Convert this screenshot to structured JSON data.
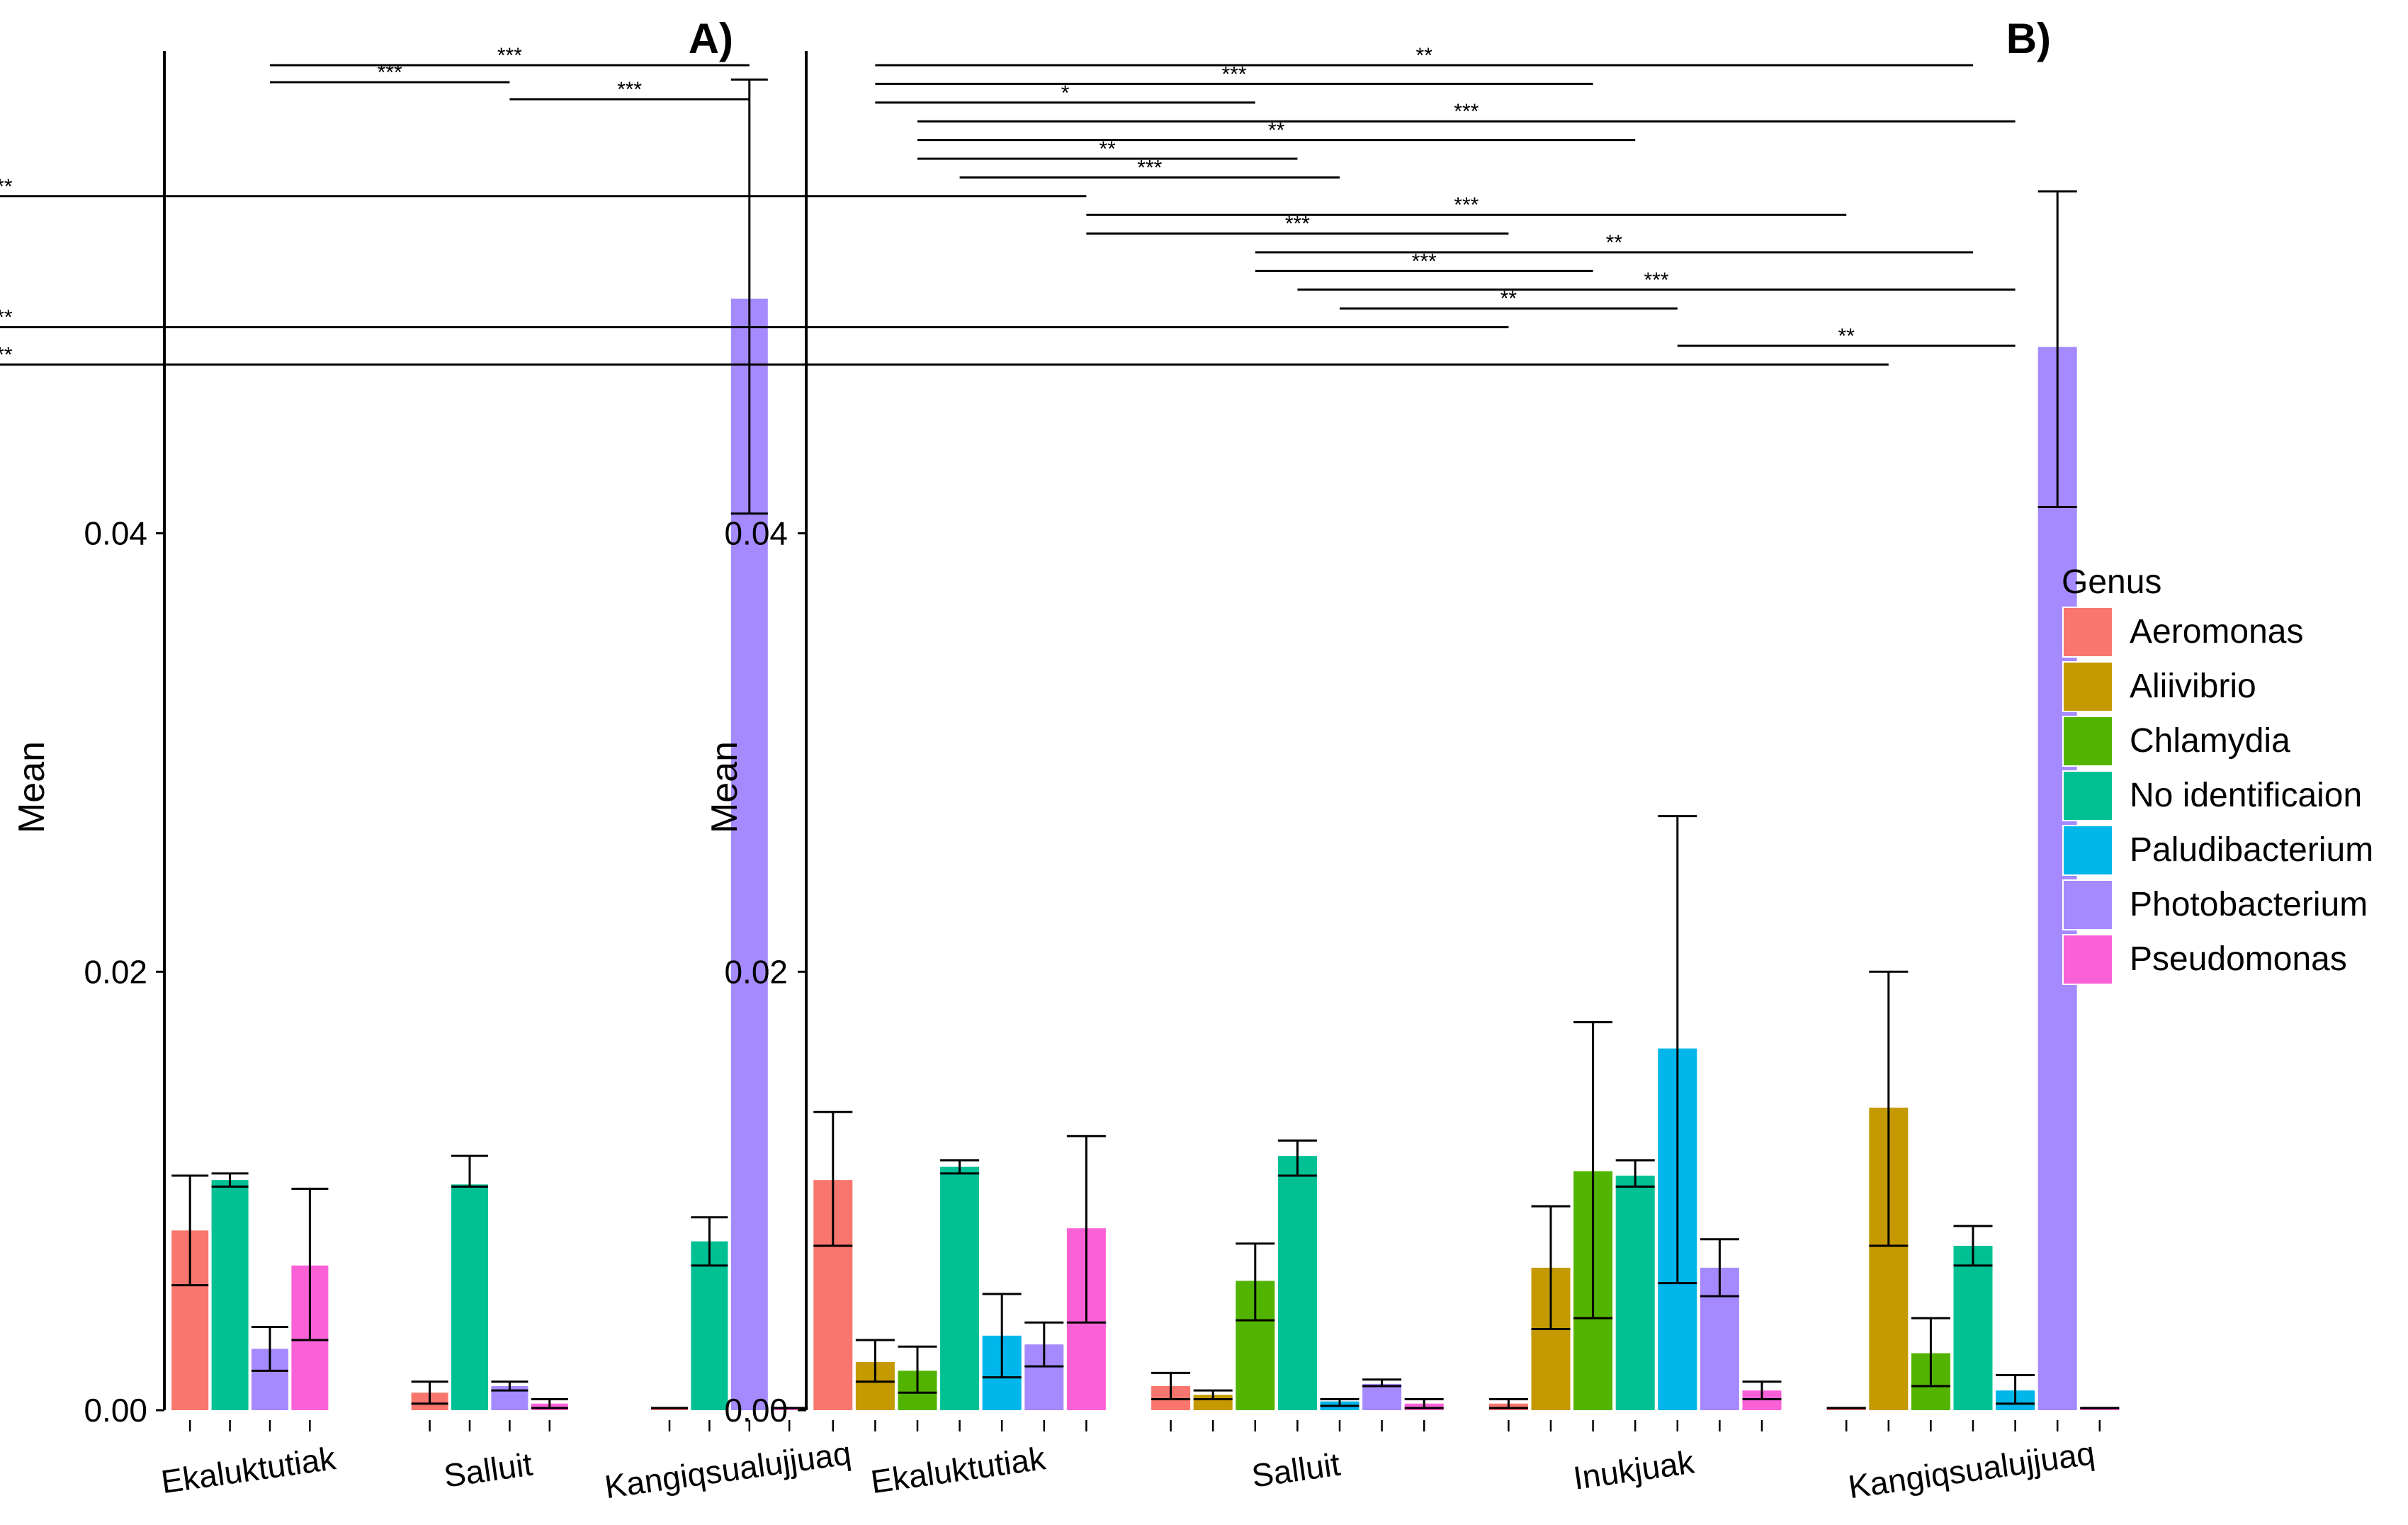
{
  "chart_data": [
    {
      "type": "bar",
      "panel_label": "A)",
      "ylabel": "Mean",
      "ylim": [
        0,
        0.062
      ],
      "yticks": [
        {
          "value": 0,
          "label": "0.00"
        },
        {
          "value": 0.02,
          "label": "0.02"
        },
        {
          "value": 0.04,
          "label": "0.04"
        }
      ],
      "groups": [
        {
          "name": "Ekaluktutiak",
          "bars": [
            {
              "genus": "Aeromonas",
              "mean": 0.0082,
              "err_low": 0.0057,
              "err_high": 0.0107
            },
            {
              "genus": "No identificaion",
              "mean": 0.0105,
              "err_low": 0.0102,
              "err_high": 0.0108
            },
            {
              "genus": "Photobacterium",
              "mean": 0.0028,
              "err_low": 0.0018,
              "err_high": 0.0038
            },
            {
              "genus": "Pseudomonas",
              "mean": 0.0066,
              "err_low": 0.0032,
              "err_high": 0.0101
            }
          ]
        },
        {
          "name": "Salluit",
          "bars": [
            {
              "genus": "Aeromonas",
              "mean": 0.0008,
              "err_low": 0.0003,
              "err_high": 0.0013
            },
            {
              "genus": "No identificaion",
              "mean": 0.0103,
              "err_low": 0.0102,
              "err_high": 0.0116
            },
            {
              "genus": "Photobacterium",
              "mean": 0.0011,
              "err_low": 0.0009,
              "err_high": 0.0013
            },
            {
              "genus": "Pseudomonas",
              "mean": 0.0003,
              "err_low": 0.0001,
              "err_high": 0.0005
            }
          ]
        },
        {
          "name": "Kangiqsualujjuaq",
          "bars": [
            {
              "genus": "Aeromonas",
              "mean": 0.0001,
              "err_low": 0.0001,
              "err_high": 0.0001
            },
            {
              "genus": "No identificaion",
              "mean": 0.0077,
              "err_low": 0.0066,
              "err_high": 0.0088
            },
            {
              "genus": "Photobacterium",
              "mean": 0.0507,
              "err_low": 0.0409,
              "err_high": 0.0607
            },
            {
              "genus": "Pseudomonas",
              "mean": 0.0001,
              "err_low": 0.0001,
              "err_high": 0.0001
            }
          ]
        }
      ],
      "significance": [
        {
          "label": "***",
          "from": 2,
          "to": 10
        },
        {
          "label": "***",
          "from": 2,
          "to": 6
        },
        {
          "label": "***",
          "from": 6,
          "to": 10
        }
      ]
    },
    {
      "type": "bar",
      "panel_label": "B)",
      "ylabel": "Mean",
      "ylim": [
        0,
        0.062
      ],
      "yticks": [
        {
          "value": 0,
          "label": "0.00"
        },
        {
          "value": 0.02,
          "label": "0.02"
        },
        {
          "value": 0.04,
          "label": "0.04"
        }
      ],
      "groups": [
        {
          "name": "Ekaluktutiak",
          "bars": [
            {
              "genus": "Aeromonas",
              "mean": 0.0105,
              "err_low": 0.0075,
              "err_high": 0.0136
            },
            {
              "genus": "Aliivibrio",
              "mean": 0.0022,
              "err_low": 0.0013,
              "err_high": 0.0032
            },
            {
              "genus": "Chlamydia",
              "mean": 0.0018,
              "err_low": 0.0008,
              "err_high": 0.0029
            },
            {
              "genus": "No identificaion",
              "mean": 0.0111,
              "err_low": 0.0108,
              "err_high": 0.0114
            },
            {
              "genus": "Paludibacterium",
              "mean": 0.0034,
              "err_low": 0.0015,
              "err_high": 0.0053
            },
            {
              "genus": "Photobacterium",
              "mean": 0.003,
              "err_low": 0.002,
              "err_high": 0.004
            },
            {
              "genus": "Pseudomonas",
              "mean": 0.0083,
              "err_low": 0.004,
              "err_high": 0.0125
            }
          ]
        },
        {
          "name": "Salluit",
          "bars": [
            {
              "genus": "Aeromonas",
              "mean": 0.0011,
              "err_low": 0.0005,
              "err_high": 0.0017
            },
            {
              "genus": "Aliivibrio",
              "mean": 0.0007,
              "err_low": 0.0005,
              "err_high": 0.0009
            },
            {
              "genus": "Chlamydia",
              "mean": 0.0059,
              "err_low": 0.0041,
              "err_high": 0.0076
            },
            {
              "genus": "No identificaion",
              "mean": 0.0116,
              "err_low": 0.0107,
              "err_high": 0.0123
            },
            {
              "genus": "Paludibacterium",
              "mean": 0.0004,
              "err_low": 0.0002,
              "err_high": 0.0005
            },
            {
              "genus": "Photobacterium",
              "mean": 0.0012,
              "err_low": 0.0011,
              "err_high": 0.0014
            },
            {
              "genus": "Pseudomonas",
              "mean": 0.0003,
              "err_low": 0.0001,
              "err_high": 0.0005
            }
          ]
        },
        {
          "name": "Inukjuak",
          "bars": [
            {
              "genus": "Aeromonas",
              "mean": 0.0003,
              "err_low": 0.0001,
              "err_high": 0.0005
            },
            {
              "genus": "Aliivibrio",
              "mean": 0.0065,
              "err_low": 0.0037,
              "err_high": 0.0093
            },
            {
              "genus": "Chlamydia",
              "mean": 0.0109,
              "err_low": 0.0042,
              "err_high": 0.0177
            },
            {
              "genus": "No identificaion",
              "mean": 0.0107,
              "err_low": 0.0102,
              "err_high": 0.0114
            },
            {
              "genus": "Paludibacterium",
              "mean": 0.0165,
              "err_low": 0.0058,
              "err_high": 0.0271
            },
            {
              "genus": "Photobacterium",
              "mean": 0.0065,
              "err_low": 0.0052,
              "err_high": 0.0078
            },
            {
              "genus": "Pseudomonas",
              "mean": 0.0009,
              "err_low": 0.0005,
              "err_high": 0.0013
            }
          ]
        },
        {
          "name": "Kangiqsualujjuaq",
          "bars": [
            {
              "genus": "Aeromonas",
              "mean": 0.0001,
              "err_low": 0.0001,
              "err_high": 0.0001
            },
            {
              "genus": "Aliivibrio",
              "mean": 0.0138,
              "err_low": 0.0075,
              "err_high": 0.02
            },
            {
              "genus": "Chlamydia",
              "mean": 0.0026,
              "err_low": 0.0011,
              "err_high": 0.0042
            },
            {
              "genus": "No identificaion",
              "mean": 0.0075,
              "err_low": 0.0066,
              "err_high": 0.0084
            },
            {
              "genus": "Paludibacterium",
              "mean": 0.0009,
              "err_low": 0.0003,
              "err_high": 0.0016
            },
            {
              "genus": "Photobacterium",
              "mean": 0.0485,
              "err_low": 0.0412,
              "err_high": 0.0556
            },
            {
              "genus": "Pseudomonas",
              "mean": 0.0001,
              "err_low": 0.0001,
              "err_high": 0.0001
            }
          ]
        }
      ],
      "significance": [
        {
          "label": "**",
          "from": 1,
          "to": 24
        },
        {
          "label": "***",
          "from": 1,
          "to": 16
        },
        {
          "label": "*",
          "from": 1,
          "to": 9
        },
        {
          "label": "***",
          "from": 2,
          "to": 25
        },
        {
          "label": "**",
          "from": 2,
          "to": 17
        },
        {
          "label": "**",
          "from": 2,
          "to": 10
        },
        {
          "label": "***",
          "from": 3,
          "to": 11
        },
        {
          "label": "***",
          "from": 6,
          "to": 29
        },
        {
          "label": "***",
          "from": 6,
          "to": 21
        },
        {
          "label": "***",
          "from": 6,
          "to": 14
        },
        {
          "label": "**",
          "from": 9,
          "to": 24
        },
        {
          "label": "***",
          "from": 9,
          "to": 16
        },
        {
          "label": "***",
          "from": 10,
          "to": 25
        },
        {
          "label": "**",
          "from": 11,
          "to": 18
        },
        {
          "label": "***",
          "from": 14,
          "to": 29
        },
        {
          "label": "**",
          "from": 18,
          "to": 25
        },
        {
          "label": "***",
          "from": 22,
          "to": 29
        }
      ]
    }
  ],
  "legend": {
    "title": "Genus",
    "position": "right",
    "items": [
      {
        "name": "Aeromonas",
        "color": "#F8766D"
      },
      {
        "name": "Aliivibrio",
        "color": "#C49A00"
      },
      {
        "name": "Chlamydia",
        "color": "#53B400"
      },
      {
        "name": "No identificaion",
        "color": "#00C094"
      },
      {
        "name": "Paludibacterium",
        "color": "#00B6EB"
      },
      {
        "name": "Photobacterium",
        "color": "#A58AFF"
      },
      {
        "name": "Pseudomonas",
        "color": "#FB61D7"
      }
    ]
  }
}
